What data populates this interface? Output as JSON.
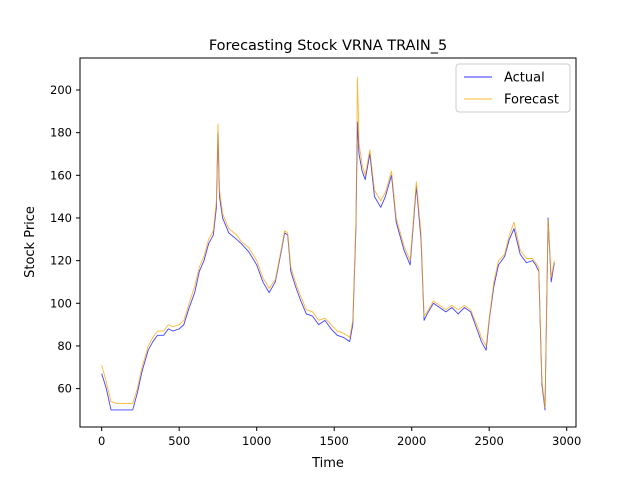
{
  "chart_data": {
    "type": "line",
    "title": "Forecasting Stock VRNA TRAIN_5",
    "xlabel": "Time",
    "ylabel": "Stock Price",
    "xlim": [
      -140,
      3060
    ],
    "ylim": [
      42,
      215
    ],
    "xticks": [
      0,
      500,
      1000,
      1500,
      2000,
      2500,
      3000
    ],
    "yticks": [
      60,
      80,
      100,
      120,
      140,
      160,
      180,
      200
    ],
    "grid": false,
    "legend_position": "upper right",
    "series": [
      {
        "name": "Actual",
        "color": "#0000ff",
        "x": [
          0,
          30,
          60,
          100,
          150,
          200,
          230,
          260,
          300,
          330,
          360,
          400,
          430,
          460,
          500,
          530,
          560,
          600,
          630,
          660,
          690,
          720,
          740,
          750,
          760,
          780,
          820,
          870,
          900,
          950,
          1000,
          1040,
          1080,
          1120,
          1160,
          1180,
          1200,
          1220,
          1250,
          1280,
          1320,
          1360,
          1400,
          1440,
          1480,
          1520,
          1560,
          1600,
          1620,
          1640,
          1650,
          1660,
          1680,
          1700,
          1730,
          1760,
          1800,
          1830,
          1870,
          1900,
          1950,
          1990,
          2030,
          2060,
          2080,
          2100,
          2140,
          2180,
          2220,
          2260,
          2300,
          2340,
          2380,
          2420,
          2450,
          2480,
          2500,
          2530,
          2560,
          2600,
          2630,
          2660,
          2700,
          2740,
          2780,
          2800,
          2820,
          2840,
          2860,
          2880,
          2900,
          2920
        ],
        "y": [
          67,
          60,
          50,
          50,
          50,
          50,
          58,
          68,
          78,
          82,
          85,
          85,
          88,
          87,
          88,
          90,
          97,
          105,
          115,
          120,
          128,
          132,
          145,
          180,
          150,
          140,
          133,
          130,
          128,
          124,
          118,
          110,
          105,
          110,
          125,
          133,
          132,
          115,
          108,
          102,
          95,
          94,
          90,
          92,
          88,
          85,
          84,
          82,
          90,
          135,
          185,
          170,
          162,
          158,
          170,
          150,
          145,
          150,
          160,
          138,
          125,
          118,
          155,
          130,
          92,
          95,
          100,
          98,
          96,
          98,
          95,
          98,
          96,
          88,
          82,
          78,
          92,
          108,
          118,
          122,
          130,
          135,
          123,
          119,
          120,
          118,
          115,
          62,
          50,
          140,
          110,
          119
        ],
        "width": 0.9
      },
      {
        "name": "Forecast",
        "color": "#ffa500",
        "x": [
          0,
          30,
          60,
          100,
          150,
          200,
          230,
          260,
          300,
          330,
          360,
          400,
          430,
          460,
          500,
          530,
          560,
          600,
          630,
          660,
          690,
          720,
          740,
          750,
          760,
          780,
          820,
          870,
          900,
          950,
          1000,
          1040,
          1080,
          1120,
          1160,
          1180,
          1200,
          1220,
          1250,
          1280,
          1320,
          1360,
          1400,
          1440,
          1480,
          1520,
          1560,
          1600,
          1620,
          1640,
          1650,
          1660,
          1680,
          1700,
          1730,
          1760,
          1800,
          1830,
          1870,
          1900,
          1950,
          1990,
          2030,
          2060,
          2080,
          2100,
          2140,
          2180,
          2220,
          2260,
          2300,
          2340,
          2380,
          2420,
          2450,
          2480,
          2500,
          2530,
          2560,
          2600,
          2630,
          2660,
          2700,
          2740,
          2780,
          2800,
          2820,
          2840,
          2860,
          2880,
          2900,
          2920
        ],
        "y": [
          71,
          63,
          54,
          53,
          53,
          53,
          60,
          70,
          80,
          84,
          87,
          87,
          90,
          89,
          90,
          92,
          99,
          108,
          117,
          122,
          130,
          134,
          148,
          184,
          153,
          142,
          135,
          132,
          129,
          126,
          120,
          112,
          107,
          111,
          126,
          134,
          133,
          117,
          110,
          104,
          97,
          96,
          92,
          93,
          90,
          87,
          86,
          84,
          92,
          138,
          206,
          175,
          165,
          160,
          172,
          153,
          148,
          152,
          162,
          140,
          127,
          120,
          157,
          133,
          94,
          96,
          101,
          99,
          97,
          99,
          97,
          99,
          97,
          90,
          84,
          80,
          93,
          110,
          120,
          123,
          132,
          138,
          125,
          121,
          121,
          119,
          117,
          64,
          51,
          139,
          112,
          120
        ],
        "width": 0.9
      }
    ]
  }
}
